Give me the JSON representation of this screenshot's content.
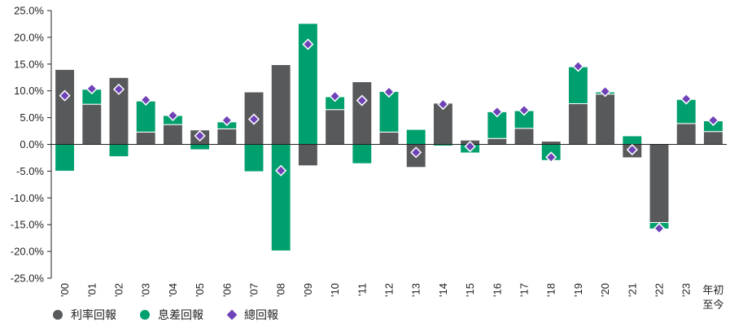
{
  "chart_data": {
    "type": "bar",
    "stacked": true,
    "categories": [
      "'00",
      "'01",
      "'02",
      "'03",
      "'04",
      "'05",
      "'06",
      "'07",
      "'08",
      "'09",
      "'10",
      "'11",
      "'12",
      "'13",
      "'14",
      "'15",
      "'16",
      "'17",
      "'18",
      "'19",
      "'20",
      "'21",
      "'22",
      "'23",
      "年初至今"
    ],
    "series": [
      {
        "name": "利率回報",
        "color": "#58595b",
        "values": [
          14.0,
          7.5,
          12.5,
          2.3,
          3.7,
          2.7,
          2.9,
          9.8,
          14.9,
          -4.0,
          6.5,
          11.7,
          2.3,
          -4.3,
          7.7,
          0.8,
          1.1,
          3.0,
          0.6,
          7.6,
          9.4,
          -2.5,
          -14.6,
          3.9,
          2.4
        ]
      },
      {
        "name": "息差回報",
        "color": "#00a06e",
        "values": [
          -5.0,
          2.8,
          -2.3,
          5.8,
          1.7,
          -1.0,
          1.3,
          -5.1,
          -19.9,
          22.6,
          2.4,
          -3.6,
          7.6,
          2.8,
          -0.3,
          -1.6,
          5.0,
          3.3,
          -3.0,
          6.9,
          0.4,
          1.6,
          -1.2,
          4.5,
          2.0
        ]
      }
    ],
    "markers": {
      "name": "總回報",
      "color": "#6f42b8",
      "values": [
        9.1,
        10.4,
        10.3,
        8.3,
        5.4,
        1.6,
        4.5,
        4.7,
        -4.9,
        18.7,
        9.0,
        8.2,
        9.8,
        -1.5,
        7.5,
        -0.4,
        6.1,
        6.4,
        -2.4,
        14.6,
        9.9,
        -1.0,
        -15.7,
        8.5,
        4.5
      ]
    },
    "yticks": [
      "25.0%",
      "20.0%",
      "15.0%",
      "10.0%",
      "5.0%",
      "0.0%",
      "-5.0%",
      "-10.0%",
      "-15.0%",
      "-20.0%",
      "-25.0%"
    ],
    "ylim": [
      -25,
      25
    ],
    "legend_position": "bottom-left",
    "grid": false
  }
}
